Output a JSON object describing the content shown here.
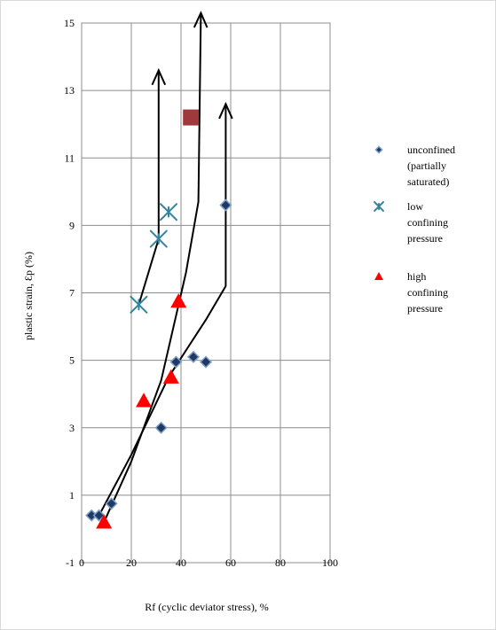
{
  "chart_data": {
    "type": "scatter",
    "title": "",
    "xlabel": "Rf (cyclic deviator stress), %",
    "ylabel": "plastic strain, Ɛp (%)",
    "xlim": [
      0,
      100
    ],
    "ylim": [
      -1,
      15
    ],
    "x_ticks": [
      "0",
      "20",
      "40",
      "60",
      "80",
      "100"
    ],
    "y_ticks": [
      "-1",
      "1",
      "3",
      "5",
      "7",
      "9",
      "11",
      "13",
      "15"
    ],
    "x_tick_values": [
      0,
      20,
      40,
      60,
      80,
      100
    ],
    "y_tick_values": [
      -1,
      1,
      3,
      5,
      7,
      9,
      11,
      13,
      15
    ],
    "grid": true,
    "legend_position": "right",
    "series": [
      {
        "name": "unconfined (partially saturated)",
        "legend_lines": [
          "unconfined",
          "(partially",
          "saturated)"
        ],
        "marker": "diamond",
        "color": "#1f3864",
        "points": [
          {
            "x": 4,
            "y": 0.4
          },
          {
            "x": 7,
            "y": 0.4
          },
          {
            "x": 12,
            "y": 0.75
          },
          {
            "x": 32,
            "y": 3.0
          },
          {
            "x": 38,
            "y": 4.95
          },
          {
            "x": 45,
            "y": 5.1
          },
          {
            "x": 50,
            "y": 4.95
          },
          {
            "x": 58,
            "y": 9.6
          }
        ]
      },
      {
        "name": "low confining pressure",
        "legend_lines": [
          "low",
          "confining",
          "pressure"
        ],
        "marker": "star",
        "color": "#31849b",
        "points": [
          {
            "x": 23,
            "y": 6.65
          },
          {
            "x": 31,
            "y": 8.6
          },
          {
            "x": 35,
            "y": 9.4
          }
        ]
      },
      {
        "name": "high confining pressure",
        "legend_lines": [
          "high",
          "confining",
          "pressure"
        ],
        "marker": "triangle",
        "color": "#ff0000",
        "points": [
          {
            "x": 9,
            "y": 0.2
          },
          {
            "x": 25,
            "y": 3.8
          },
          {
            "x": 36,
            "y": 4.5
          },
          {
            "x": 39,
            "y": 6.75
          }
        ]
      },
      {
        "marker": "square",
        "color": "#a0393b",
        "points": [
          {
            "x": 44,
            "y": 12.2
          }
        ]
      }
    ],
    "trend_lines": [
      {
        "color": "#000000",
        "points": [
          {
            "x": 7,
            "y": 0.4
          },
          {
            "x": 20,
            "y": 2.2
          },
          {
            "x": 35,
            "y": 4.5
          },
          {
            "x": 50,
            "y": 6.2
          },
          {
            "x": 58,
            "y": 7.2
          },
          {
            "x": 58,
            "y": 12.6
          }
        ],
        "arrow": true
      },
      {
        "color": "#000000",
        "points": [
          {
            "x": 9,
            "y": 0.2
          },
          {
            "x": 20,
            "y": 2.0
          },
          {
            "x": 32,
            "y": 4.4
          },
          {
            "x": 42,
            "y": 7.6
          },
          {
            "x": 47,
            "y": 9.7
          },
          {
            "x": 48,
            "y": 15.3
          }
        ],
        "arrow": true
      },
      {
        "color": "#000000",
        "points": [
          {
            "x": 23,
            "y": 6.65
          },
          {
            "x": 31,
            "y": 8.6
          },
          {
            "x": 31,
            "y": 13.6
          }
        ],
        "arrow": true
      }
    ]
  }
}
